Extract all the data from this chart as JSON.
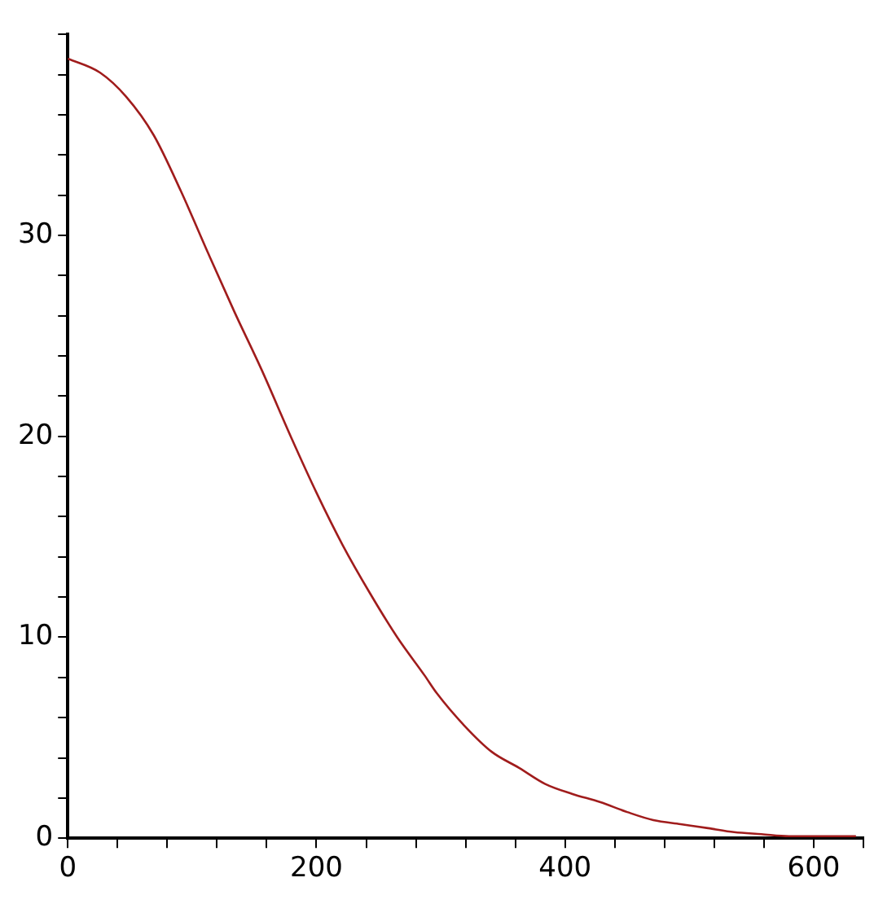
{
  "chart_data": {
    "type": "line",
    "x": [
      0,
      26,
      47,
      69,
      91,
      113,
      134,
      156,
      180,
      200,
      221,
      243,
      265,
      287,
      297,
      319,
      341,
      363,
      384,
      406,
      428,
      450,
      471,
      493,
      515,
      536,
      558,
      580,
      602,
      634
    ],
    "series": [
      {
        "color": "#a01c1c",
        "values": [
          38.8,
          38.1,
          36.9,
          35.0,
          32.2,
          29.1,
          26.2,
          23.3,
          19.9,
          17.2,
          14.6,
          12.2,
          10.0,
          8.1,
          7.2,
          5.6,
          4.3,
          3.5,
          2.7,
          2.2,
          1.8,
          1.3,
          0.9,
          0.7,
          0.5,
          0.3,
          0.2,
          0.1,
          0.1,
          0.1
        ]
      }
    ],
    "xlim": [
      0,
      640
    ],
    "ylim": [
      0,
      40
    ],
    "xticks": [
      0,
      {
        "value": 40,
        "label": null
      },
      {
        "value": 80,
        "label": null
      },
      {
        "value": 120,
        "label": null
      },
      {
        "value": 160,
        "label": null
      },
      200,
      {
        "value": 240,
        "label": null
      },
      {
        "value": 280,
        "label": null
      },
      {
        "value": 320,
        "label": null
      },
      {
        "value": 360,
        "label": null
      },
      400,
      {
        "value": 440,
        "label": null
      },
      {
        "value": 480,
        "label": null
      },
      {
        "value": 520,
        "label": null
      },
      {
        "value": 560,
        "label": null
      },
      600,
      {
        "value": 640,
        "label": null
      }
    ],
    "yticks": [
      0,
      {
        "value": 2,
        "label": null
      },
      {
        "value": 4,
        "label": null
      },
      {
        "value": 6,
        "label": null
      },
      {
        "value": 8,
        "label": null
      },
      10,
      {
        "value": 12,
        "label": null
      },
      {
        "value": 14,
        "label": null
      },
      {
        "value": 16,
        "label": null
      },
      {
        "value": 18,
        "label": null
      },
      20,
      {
        "value": 22,
        "label": null
      },
      {
        "value": 24,
        "label": null
      },
      {
        "value": 26,
        "label": null
      },
      {
        "value": 28,
        "label": null
      },
      30,
      {
        "value": 32,
        "label": null
      },
      {
        "value": 34,
        "label": null
      },
      {
        "value": 36,
        "label": null
      },
      {
        "value": 38,
        "label": null
      },
      {
        "value": 40,
        "label": null
      }
    ],
    "grid": false,
    "legend": false,
    "marker": "none",
    "line_style": "solid"
  }
}
